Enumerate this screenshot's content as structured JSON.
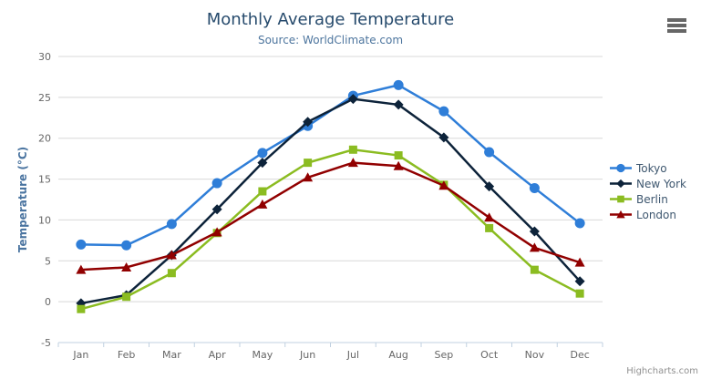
{
  "credit": {
    "label": "Highcharts.com"
  },
  "menu": {
    "icon": "hamburger-icon"
  },
  "colors": {
    "title": "#274b6d",
    "subtitle": "#4d759e",
    "axis_title": "#4a74a0",
    "axis_labels": "#666666",
    "gridline": "#d8d8d8",
    "axis_line": "#c0d0e0",
    "legend_text": "#3e576f",
    "credit_text": "#909090"
  },
  "chart_data": {
    "type": "line",
    "title": "Monthly Average Temperature",
    "subtitle": "Source: WorldClimate.com",
    "xlabel": "",
    "ylabel": "Temperature (°C)",
    "ylim": [
      -5,
      30
    ],
    "ytick_step": 5,
    "grid": true,
    "legend_position": "right",
    "categories": [
      "Jan",
      "Feb",
      "Mar",
      "Apr",
      "May",
      "Jun",
      "Jul",
      "Aug",
      "Sep",
      "Oct",
      "Nov",
      "Dec"
    ],
    "series": [
      {
        "name": "Tokyo",
        "color": "#2f7ed8",
        "marker": "circle",
        "values": [
          7.0,
          6.9,
          9.5,
          14.5,
          18.2,
          21.5,
          25.2,
          26.5,
          23.3,
          18.3,
          13.9,
          9.6
        ]
      },
      {
        "name": "New York",
        "color": "#0d233a",
        "marker": "diamond",
        "values": [
          -0.2,
          0.8,
          5.7,
          11.3,
          17.0,
          22.0,
          24.8,
          24.1,
          20.1,
          14.1,
          8.6,
          2.5
        ]
      },
      {
        "name": "Berlin",
        "color": "#8bbc21",
        "marker": "square",
        "values": [
          -0.9,
          0.6,
          3.5,
          8.4,
          13.5,
          17.0,
          18.6,
          17.9,
          14.3,
          9.0,
          3.9,
          1.0
        ]
      },
      {
        "name": "London",
        "color": "#910000",
        "marker": "triangle",
        "values": [
          3.9,
          4.2,
          5.7,
          8.5,
          11.9,
          15.2,
          17.0,
          16.6,
          14.2,
          10.3,
          6.6,
          4.8
        ]
      }
    ]
  }
}
